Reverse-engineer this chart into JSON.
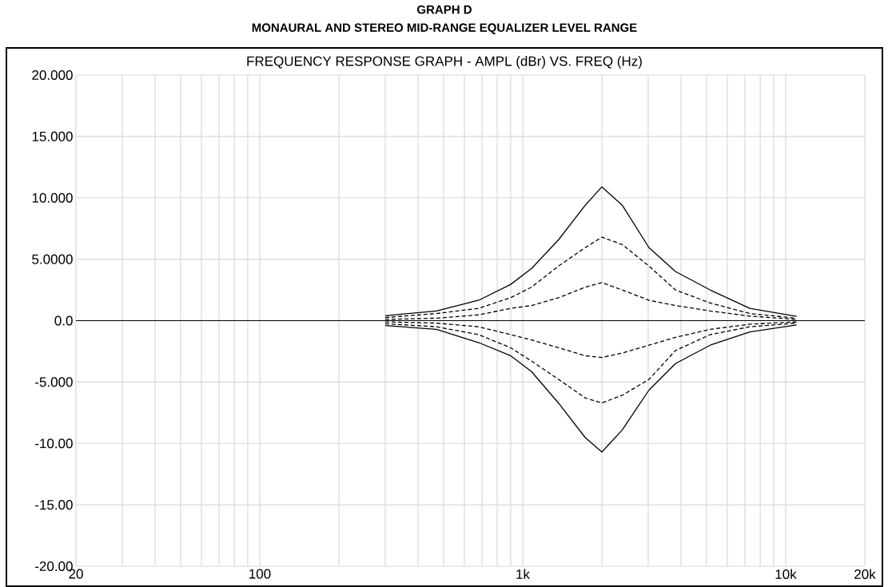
{
  "chart_data": {
    "type": "line",
    "title": "GRAPH D",
    "subtitle": "MONAURAL AND STEREO MID-RANGE EQUALIZER LEVEL RANGE",
    "annotations": [
      "FREQUENCY RESPONSE GRAPH - AMPL (dBr) VS. FREQ (Hz)"
    ],
    "log": "x",
    "grid": true,
    "marker": "none",
    "xlim": [
      20,
      20000
    ],
    "ylim": [
      -20,
      20
    ],
    "xticks": [
      20,
      100,
      {
        "value": 1000,
        "label": "1k"
      },
      {
        "value": 10000,
        "label": "10k"
      },
      {
        "value": 20000,
        "label": "20k"
      }
    ],
    "yticks": [
      {
        "value": -20,
        "label": "-20.00"
      },
      {
        "value": -15,
        "label": "-15.00"
      },
      {
        "value": -10,
        "label": "-10.00"
      },
      {
        "value": -5,
        "label": "-5.000"
      },
      {
        "value": 0,
        "label": "0.0"
      },
      {
        "value": 5,
        "label": "5.0000"
      },
      {
        "value": 10,
        "label": "10.000"
      },
      {
        "value": 15,
        "label": "15.000"
      },
      {
        "value": 20,
        "label": "20.000"
      }
    ],
    "ref_lines": [
      {
        "axis": "y",
        "value": 0,
        "color": "#000000",
        "line_style": "solid"
      }
    ],
    "x": [
      300,
      470,
      680,
      900,
      1080,
      1370,
      1730,
      2000,
      2390,
      3020,
      3810,
      5160,
      7310,
      11000
    ],
    "series": [
      {
        "color": "#000000",
        "line_style": "solid",
        "values": [
          0.4,
          0.79,
          1.66,
          2.95,
          4.24,
          6.6,
          9.4,
          10.9,
          9.4,
          5.95,
          4.0,
          2.5,
          1.0,
          0.35
        ]
      },
      {
        "color": "#000000",
        "line_style": "dashed",
        "values": [
          0.25,
          0.58,
          1.0,
          1.87,
          2.73,
          4.45,
          5.95,
          6.8,
          6.2,
          4.45,
          2.5,
          1.44,
          0.58,
          0.2
        ]
      },
      {
        "color": "#000000",
        "line_style": "dashed",
        "values": [
          0.1,
          0.2,
          0.47,
          1.0,
          1.23,
          1.87,
          2.73,
          3.1,
          2.5,
          1.66,
          1.23,
          0.79,
          0.37,
          0.1
        ]
      },
      {
        "color": "#000000",
        "line_style": "dashed",
        "values": [
          -0.1,
          -0.2,
          -0.5,
          -1.14,
          -1.57,
          -2.21,
          -2.86,
          -3.0,
          -2.64,
          -2.0,
          -1.36,
          -0.71,
          -0.29,
          -0.1
        ]
      },
      {
        "color": "#000000",
        "line_style": "dashed",
        "values": [
          -0.25,
          -0.5,
          -1.14,
          -2.21,
          -3.29,
          -4.79,
          -6.3,
          -6.7,
          -6.08,
          -4.79,
          -2.43,
          -1.14,
          -0.5,
          -0.2
        ]
      },
      {
        "color": "#000000",
        "line_style": "solid",
        "values": [
          -0.4,
          -0.71,
          -1.79,
          -2.86,
          -4.15,
          -6.73,
          -9.53,
          -10.7,
          -8.9,
          -5.66,
          -3.5,
          -2.0,
          -0.92,
          -0.35
        ]
      }
    ]
  }
}
